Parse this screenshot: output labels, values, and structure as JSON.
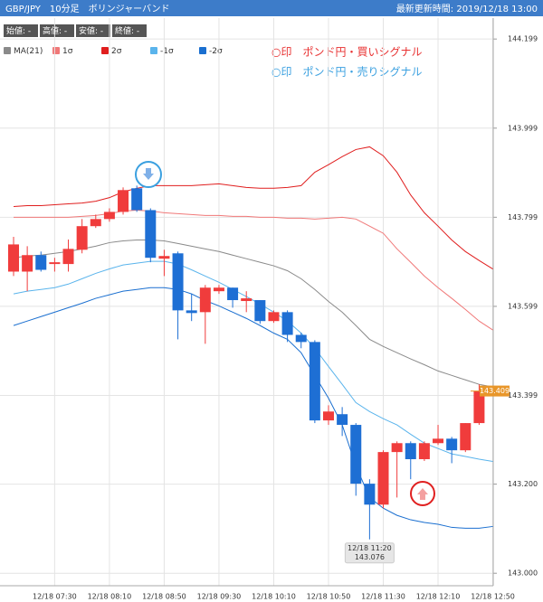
{
  "chart_data": {
    "type": "candlestick",
    "title": "GBP/JPY　10分足　ボリンジャーバンド",
    "updated": "最新更新時間: 2019/12/18 13:00",
    "ohlc_info": [
      "始値: -",
      "高値: -",
      "安値: -",
      "終値: -"
    ],
    "annotations": [
      "○印　ポンド円・買いシグナル",
      "○印　ポンド円・売りシグナル"
    ],
    "annotation_colors": [
      "#e83030",
      "#3aa0e0"
    ],
    "categories": [
      null,
      null,
      null,
      "12/18 07:30",
      null,
      null,
      null,
      "12/18 08:10",
      null,
      null,
      null,
      "12/18 08:50",
      null,
      null,
      null,
      "12/18 09:30",
      null,
      null,
      null,
      "12/18 10:10",
      null,
      null,
      null,
      "12/18 10:50",
      null,
      null,
      null,
      "12/18 11:30",
      null,
      null,
      null,
      "12/18 12:10",
      null,
      null,
      null,
      "12/18 12:50"
    ],
    "open": [
      143.677,
      143.677,
      143.714,
      143.694,
      143.694,
      143.726,
      143.779,
      143.795,
      143.811,
      143.864,
      143.815,
      143.706,
      143.718,
      143.59,
      143.586,
      143.633,
      143.641,
      143.611,
      143.613,
      143.566,
      143.586,
      143.535,
      143.519,
      143.343,
      143.357,
      143.333,
      143.201,
      143.154,
      143.272,
      143.292,
      143.256,
      143.292,
      143.302,
      143.276,
      143.337,
      null
    ],
    "high": [
      143.755,
      143.734,
      143.722,
      143.708,
      143.749,
      143.795,
      143.805,
      143.819,
      143.866,
      143.87,
      143.819,
      143.726,
      143.722,
      143.627,
      143.647,
      143.647,
      143.641,
      143.633,
      143.613,
      143.59,
      143.59,
      143.54,
      143.523,
      143.377,
      143.373,
      143.337,
      143.211,
      143.276,
      143.296,
      143.296,
      143.296,
      143.333,
      143.306,
      143.337,
      143.424,
      null
    ],
    "low": [
      143.667,
      143.633,
      143.677,
      143.677,
      143.677,
      143.718,
      143.775,
      143.789,
      143.805,
      143.811,
      143.698,
      143.667,
      143.525,
      143.566,
      143.515,
      143.627,
      143.596,
      143.586,
      143.56,
      143.562,
      143.519,
      143.505,
      143.337,
      143.333,
      143.308,
      143.174,
      143.076,
      143.146,
      143.17,
      143.211,
      143.252,
      143.288,
      143.247,
      143.272,
      143.333,
      null
    ],
    "close": [
      143.738,
      143.714,
      143.681,
      143.698,
      143.728,
      143.779,
      143.795,
      143.811,
      143.86,
      143.815,
      143.708,
      143.712,
      143.59,
      143.584,
      143.641,
      143.641,
      143.613,
      143.617,
      143.566,
      143.586,
      143.535,
      143.519,
      143.343,
      143.363,
      143.333,
      143.201,
      143.154,
      143.272,
      143.292,
      143.256,
      143.292,
      143.302,
      143.276,
      143.337,
      143.409,
      null
    ],
    "up_color": "#f03c3c",
    "down_color": "#1e6fd4",
    "series": [
      {
        "name": "MA(21)",
        "color": "#8a8a8a",
        "values": [
          143.708,
          143.712,
          143.714,
          143.718,
          143.722,
          143.728,
          143.734,
          143.742,
          143.746,
          143.748,
          143.748,
          143.746,
          143.74,
          143.734,
          143.728,
          143.722,
          143.714,
          143.706,
          143.698,
          143.69,
          143.679,
          143.661,
          143.637,
          143.61,
          143.586,
          143.556,
          143.525,
          143.509,
          143.495,
          143.481,
          143.468,
          143.454,
          143.444,
          143.434,
          143.424,
          143.418
        ]
      },
      {
        "name": "1σ",
        "color": "#f07878",
        "values": [
          143.799,
          143.799,
          143.799,
          143.799,
          143.799,
          143.801,
          143.803,
          143.807,
          143.813,
          143.815,
          143.813,
          143.809,
          143.807,
          143.805,
          143.803,
          143.803,
          143.801,
          143.801,
          143.799,
          143.799,
          143.797,
          143.797,
          143.795,
          143.797,
          143.799,
          143.795,
          143.779,
          143.763,
          143.728,
          143.698,
          143.667,
          143.641,
          143.617,
          143.592,
          143.566,
          143.546
        ]
      },
      {
        "name": "2σ",
        "color": "#e01e1e",
        "values": [
          143.823,
          143.825,
          143.825,
          143.827,
          143.829,
          143.831,
          143.835,
          143.843,
          143.856,
          143.864,
          143.87,
          143.87,
          143.87,
          143.87,
          143.872,
          143.874,
          143.87,
          143.866,
          143.864,
          143.864,
          143.866,
          143.87,
          143.9,
          143.917,
          143.935,
          143.951,
          143.957,
          143.937,
          143.9,
          143.849,
          143.809,
          143.779,
          143.748,
          143.722,
          143.702,
          143.683
        ]
      },
      {
        "name": "-1σ",
        "color": "#5ab4ec",
        "values": [
          143.627,
          143.633,
          143.637,
          143.641,
          143.649,
          143.661,
          143.673,
          143.683,
          143.692,
          143.696,
          143.7,
          143.7,
          143.694,
          143.681,
          143.667,
          143.653,
          143.637,
          143.621,
          143.604,
          143.586,
          143.566,
          143.539,
          143.505,
          143.464,
          143.424,
          143.383,
          143.363,
          143.347,
          143.333,
          143.312,
          143.292,
          143.28,
          143.268,
          143.262,
          143.256,
          143.251
        ]
      },
      {
        "name": "-2σ",
        "color": "#1a6fd0",
        "values": [
          143.556,
          143.566,
          143.576,
          143.586,
          143.596,
          143.606,
          143.617,
          143.625,
          143.633,
          143.637,
          143.641,
          143.641,
          143.637,
          143.627,
          143.612,
          143.6,
          143.586,
          143.572,
          143.556,
          143.539,
          143.525,
          143.495,
          143.444,
          143.393,
          143.333,
          143.241,
          143.17,
          143.146,
          143.13,
          143.12,
          143.114,
          143.11,
          143.103,
          143.101,
          143.101,
          143.105
        ]
      }
    ],
    "ylim": [
      142.972,
      144.246
    ],
    "yticks": [
      {
        "value": 143,
        "label": "143.000"
      },
      {
        "value": 143.2,
        "label": "143.200"
      },
      143.399,
      143.599,
      143.799,
      143.999,
      144.199
    ],
    "grid": true,
    "last_price": 143.409,
    "last_price_color": "#e8962a",
    "tooltip": {
      "time": "12/18 11:20",
      "value": 143.076
    }
  }
}
